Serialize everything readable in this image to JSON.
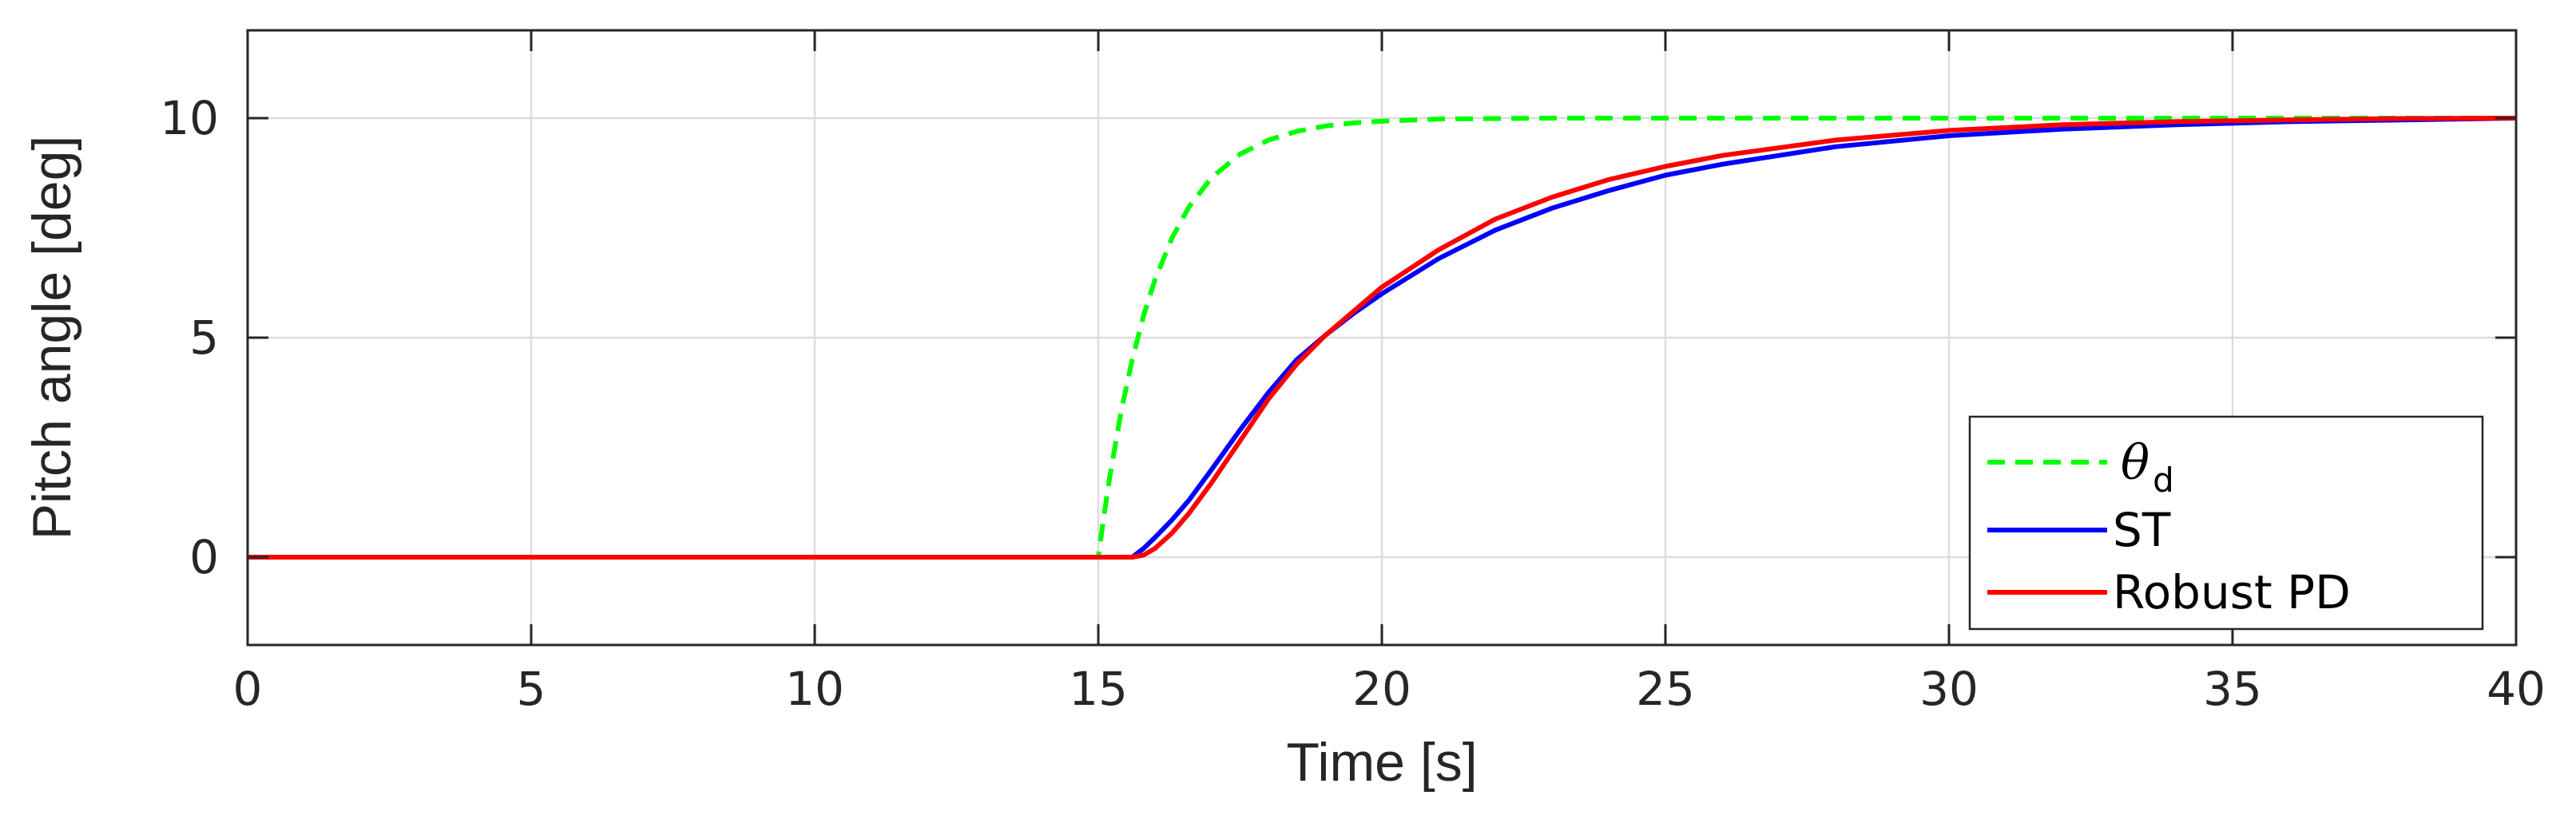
{
  "chart_data": {
    "type": "line",
    "xlabel": "Time [s]",
    "ylabel": "Pitch angle [deg]",
    "xlim": [
      0,
      40
    ],
    "ylim": [
      -2,
      12
    ],
    "xticks": [
      0,
      5,
      10,
      15,
      20,
      25,
      30,
      35,
      40
    ],
    "yticks": [
      0,
      5,
      10
    ],
    "grid": true,
    "legend_position": "bottom-right",
    "series": [
      {
        "name": "θ_d",
        "legend_symbol": "θ",
        "legend_subscript": "d",
        "color": "#00ff00",
        "style": "dashed",
        "x": [
          0,
          15.0,
          15.1,
          15.2,
          15.4,
          15.6,
          15.8,
          16.0,
          16.3,
          16.6,
          17.0,
          17.5,
          18.0,
          18.5,
          19.0,
          19.5,
          20.0,
          21.0,
          22.0,
          23.0,
          25.0,
          30.0,
          35.0,
          40.0
        ],
        "y": [
          0,
          0,
          0.95,
          1.81,
          3.3,
          4.51,
          5.51,
          6.32,
          7.27,
          7.98,
          8.65,
          9.18,
          9.5,
          9.7,
          9.82,
          9.89,
          9.93,
          9.98,
          9.99,
          10.0,
          10.0,
          10.0,
          10.0,
          10.0
        ]
      },
      {
        "name": "ST",
        "color": "#0000ff",
        "style": "solid",
        "x": [
          0,
          15.6,
          15.8,
          16.0,
          16.3,
          16.6,
          17.0,
          17.5,
          18.0,
          18.5,
          19.0,
          19.5,
          20.0,
          21.0,
          22.0,
          23.0,
          24.0,
          25.0,
          26.0,
          28.0,
          30.0,
          32.0,
          34.0,
          36.0,
          38.0,
          40.0
        ],
        "y": [
          0,
          0,
          0.2,
          0.45,
          0.85,
          1.3,
          2.0,
          2.9,
          3.75,
          4.5,
          5.05,
          5.55,
          6.0,
          6.8,
          7.45,
          7.95,
          8.35,
          8.7,
          8.95,
          9.35,
          9.6,
          9.75,
          9.85,
          9.92,
          9.96,
          10.0
        ]
      },
      {
        "name": "Robust PD",
        "color": "#ff0000",
        "style": "solid",
        "x": [
          0,
          15.6,
          15.8,
          16.0,
          16.3,
          16.6,
          17.0,
          17.5,
          18.0,
          18.5,
          19.0,
          19.5,
          20.0,
          21.0,
          22.0,
          23.0,
          24.0,
          25.0,
          26.0,
          28.0,
          30.0,
          32.0,
          34.0,
          36.0,
          38.0,
          40.0
        ],
        "y": [
          0,
          0,
          0.05,
          0.2,
          0.55,
          1.0,
          1.7,
          2.65,
          3.6,
          4.4,
          5.05,
          5.6,
          6.15,
          7.0,
          7.7,
          8.2,
          8.6,
          8.9,
          9.15,
          9.5,
          9.72,
          9.85,
          9.92,
          9.96,
          9.99,
          10.0
        ]
      }
    ]
  }
}
